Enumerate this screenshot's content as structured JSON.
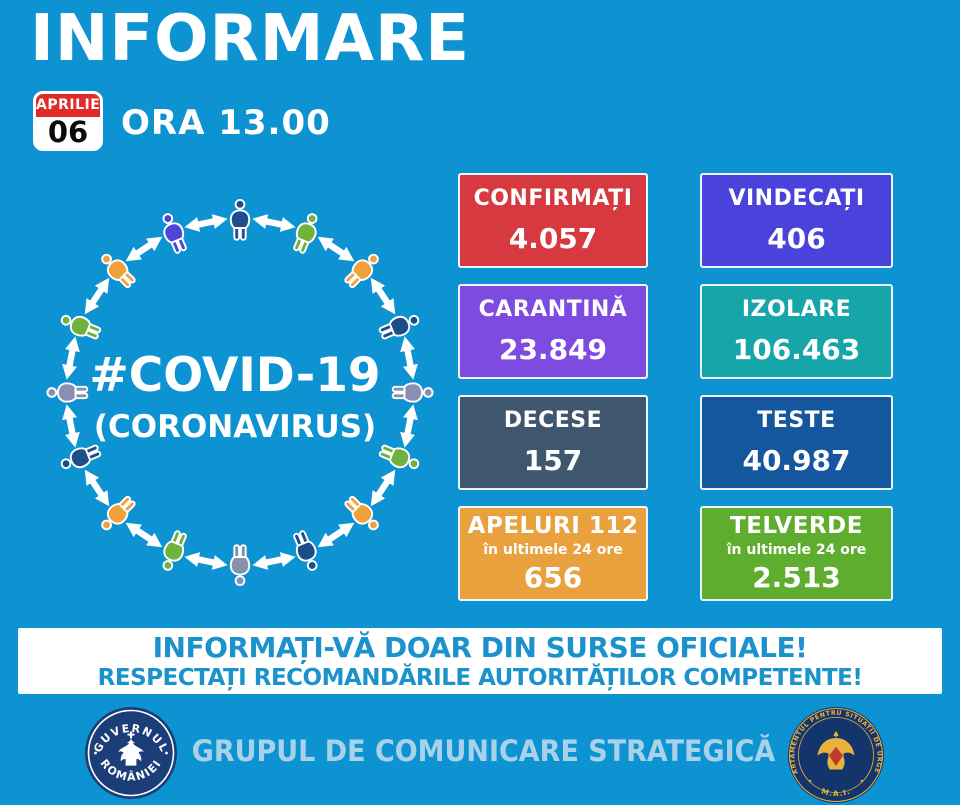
{
  "colors": {
    "background": "#0E93D2",
    "badge_red": "#E12B2B",
    "banner_text": "#1B92CC",
    "footer_text": "#A9D2EA",
    "navy_logo": "#1C3E78",
    "dsu_navy": "#14356B",
    "dsu_gold": "#E8B33C"
  },
  "header": {
    "title": "INFORMARE",
    "date_month": "APRILIE",
    "date_day": "06",
    "time_label": "ORA 13.00"
  },
  "diagram": {
    "title": "#COVID-19",
    "subtitle": "(CORONAVIRUS)",
    "arrow_color": "#FFFFFF",
    "person_colors": [
      "#1D4E89",
      "#6FB33E",
      "#F0A03C",
      "#1D4E89",
      "#8790AF",
      "#6FB33E",
      "#F0A03C",
      "#1D4E89",
      "#8790AF",
      "#6FB33E",
      "#F0A03C",
      "#1D4E89",
      "#8790AF",
      "#6FB33E",
      "#F0A03C",
      "#4B45DA"
    ]
  },
  "stats": {
    "boxes": [
      {
        "label": "CONFIRMAȚI",
        "value": "4.057",
        "color": "#D6393F"
      },
      {
        "label": "VINDECAȚI",
        "value": "406",
        "color": "#4A43DB"
      },
      {
        "label": "CARANTINĂ",
        "value": "23.849",
        "color": "#7D4BE0"
      },
      {
        "label": "IZOLARE",
        "value": "106.463",
        "color": "#16A5A8"
      },
      {
        "label": "DECESE",
        "value": "157",
        "color": "#3E576E"
      },
      {
        "label": "TESTE",
        "value": "40.987",
        "color": "#14579E"
      },
      {
        "label": "APELURI 112",
        "sublabel": "în ultimele 24 ore",
        "value": "656",
        "color": "#E9A13E"
      },
      {
        "label": "TELVERDE",
        "sublabel": "în ultimele 24 ore",
        "value": "2.513",
        "color": "#5FAD2E"
      }
    ]
  },
  "banner": {
    "line1": "INFORMAȚI-VĂ DOAR DIN SURSE OFICIALE!",
    "line2": "RESPECTAȚI RECOMANDĂRILE AUTORITĂȚILOR COMPETENTE!"
  },
  "footer": {
    "center_text": "GRUPUL DE COMUNICARE STRATEGICĂ",
    "left_logo": {
      "top_text": "GUVERNUL",
      "bottom_text": "ROMÂNIEI"
    },
    "right_logo": {
      "top_text": "DEPARTAMENTUL PENTRU SITUAȚII DE URGENȚĂ",
      "bottom_text": "M.A.I."
    }
  }
}
